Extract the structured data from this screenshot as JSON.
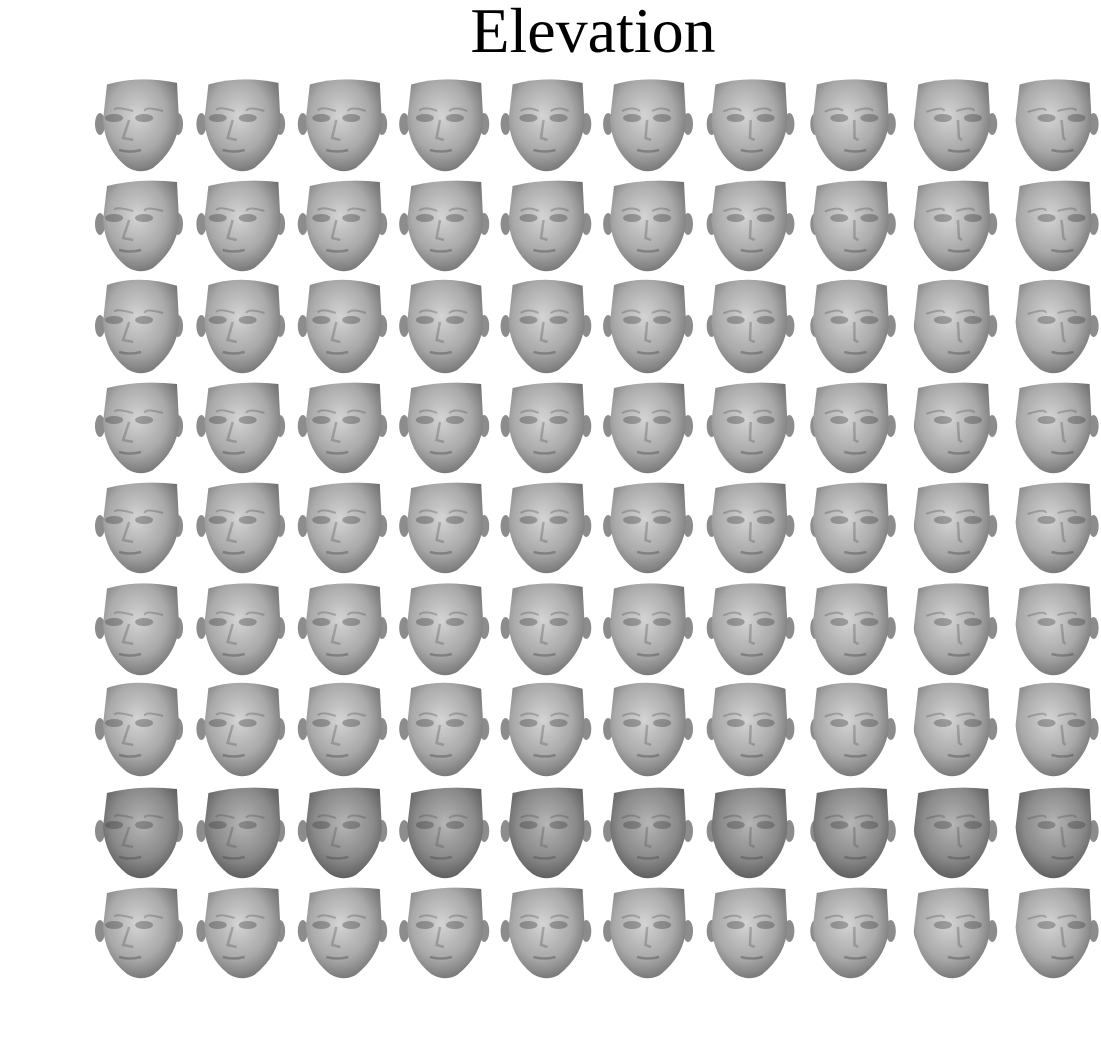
{
  "title": "Elevation"
}
